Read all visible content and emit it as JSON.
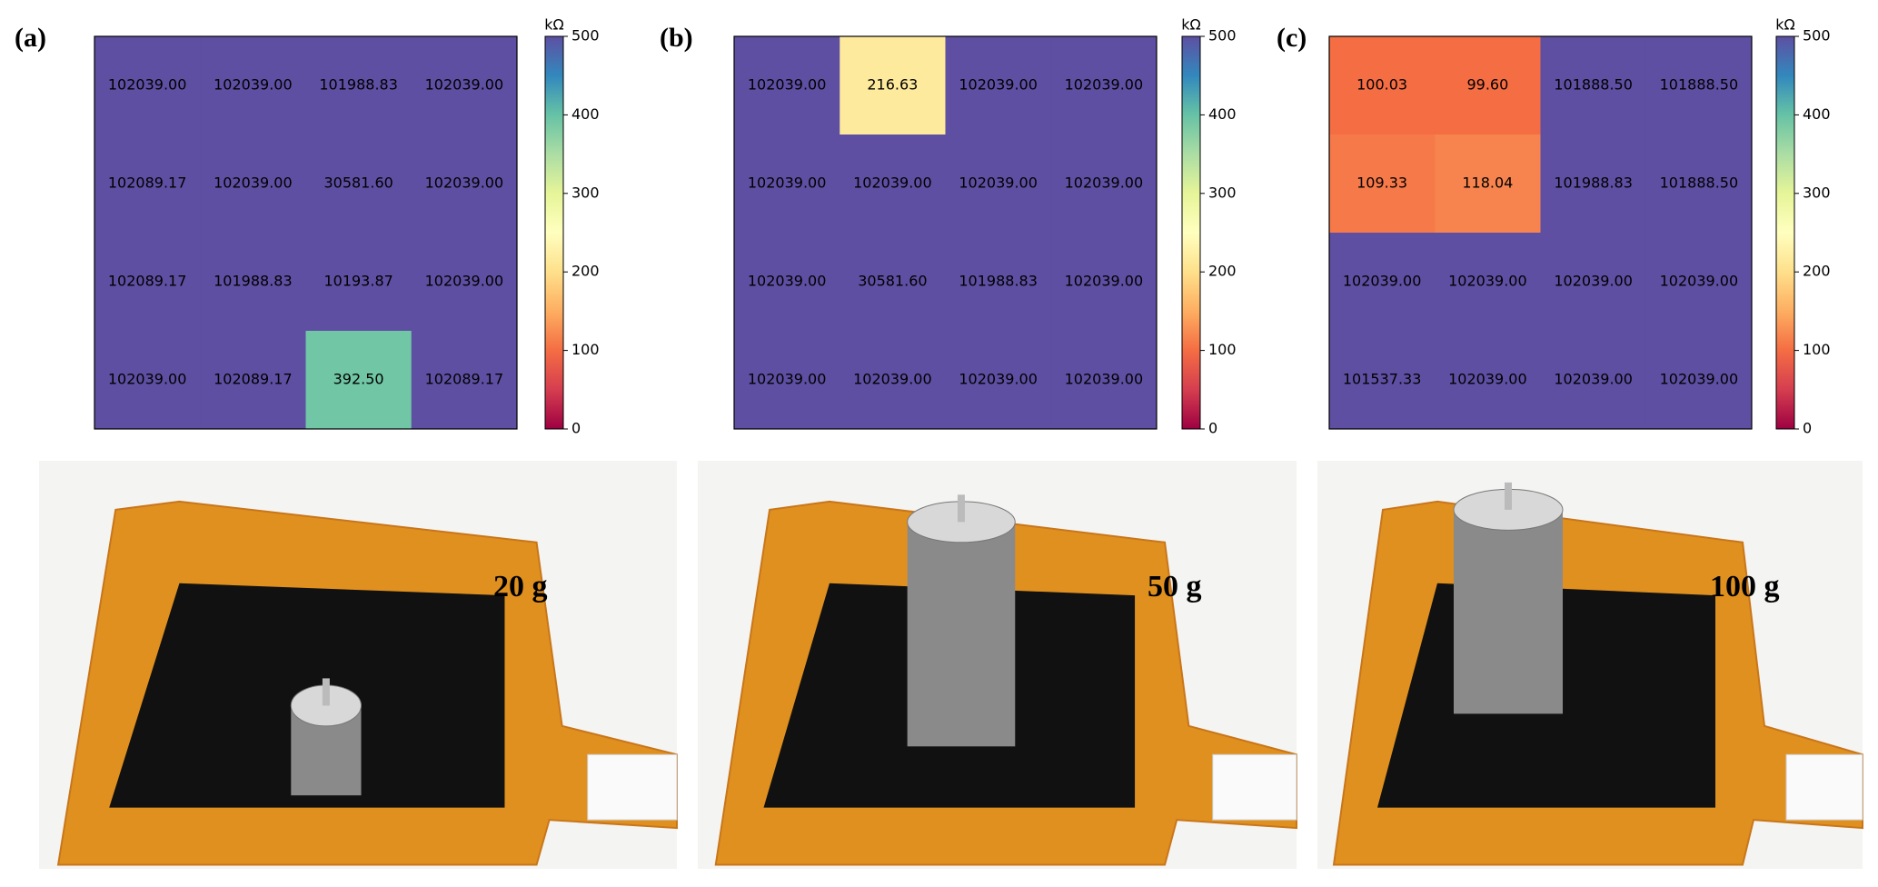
{
  "chart_data": [
    {
      "type": "heatmap",
      "panel_label": "(a)",
      "caption": "20 g",
      "colorbar_label": "kΩ",
      "values": [
        [
          102039.0,
          102039.0,
          101988.83,
          102039.0
        ],
        [
          102089.17,
          102039.0,
          30581.6,
          102039.0
        ],
        [
          102089.17,
          101988.83,
          10193.87,
          102039.0
        ],
        [
          102039.0,
          102089.17,
          392.5,
          102089.17
        ]
      ],
      "value_labels": [
        [
          "102039.00",
          "102039.00",
          "101988.83",
          "102039.00"
        ],
        [
          "102089.17",
          "102039.00",
          "30581.60",
          "102039.00"
        ],
        [
          "102089.17",
          "101988.83",
          "10193.87",
          "102039.00"
        ],
        [
          "102039.00",
          "102089.17",
          "392.50",
          "102089.17"
        ]
      ],
      "colorbar_lim": [
        0,
        500
      ],
      "colorbar_ticks": [
        0,
        100,
        200,
        300,
        400,
        500
      ],
      "colormap": "Spectral"
    },
    {
      "type": "heatmap",
      "panel_label": "(b)",
      "caption": "50 g",
      "colorbar_label": "kΩ",
      "values": [
        [
          102039.0,
          216.63,
          102039.0,
          102039.0
        ],
        [
          102039.0,
          102039.0,
          102039.0,
          102039.0
        ],
        [
          102039.0,
          30581.6,
          101988.83,
          102039.0
        ],
        [
          102039.0,
          102039.0,
          102039.0,
          102039.0
        ]
      ],
      "value_labels": [
        [
          "102039.00",
          "216.63",
          "102039.00",
          "102039.00"
        ],
        [
          "102039.00",
          "102039.00",
          "102039.00",
          "102039.00"
        ],
        [
          "102039.00",
          "30581.60",
          "101988.83",
          "102039.00"
        ],
        [
          "102039.00",
          "102039.00",
          "102039.00",
          "102039.00"
        ]
      ],
      "colorbar_lim": [
        0,
        500
      ],
      "colorbar_ticks": [
        0,
        100,
        200,
        300,
        400,
        500
      ],
      "colormap": "Spectral"
    },
    {
      "type": "heatmap",
      "panel_label": "(c)",
      "caption": "100 g",
      "colorbar_label": "kΩ",
      "values": [
        [
          100.03,
          99.6,
          101888.5,
          101888.5
        ],
        [
          109.33,
          118.04,
          101988.83,
          101888.5
        ],
        [
          102039.0,
          102039.0,
          102039.0,
          102039.0
        ],
        [
          101537.33,
          102039.0,
          102039.0,
          102039.0
        ]
      ],
      "value_labels": [
        [
          "100.03",
          "99.60",
          "101888.50",
          "101888.50"
        ],
        [
          "109.33",
          "118.04",
          "101988.83",
          "101888.50"
        ],
        [
          "102039.00",
          "102039.00",
          "102039.00",
          "102039.00"
        ],
        [
          "101537.33",
          "102039.00",
          "102039.00",
          "102039.00"
        ]
      ],
      "colorbar_lim": [
        0,
        500
      ],
      "colorbar_ticks": [
        0,
        100,
        200,
        300,
        400,
        500
      ],
      "colormap": "Spectral"
    }
  ]
}
